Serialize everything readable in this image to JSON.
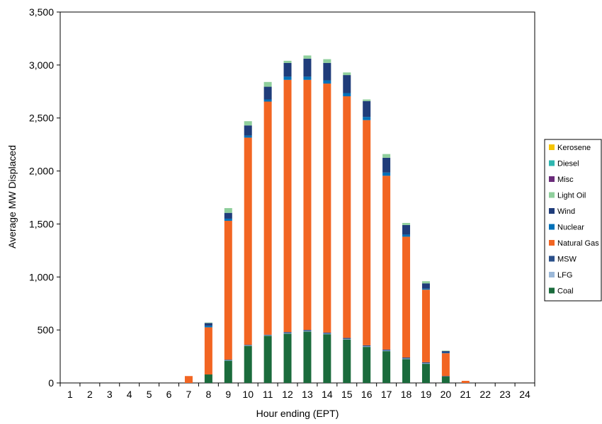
{
  "chart_data": {
    "type": "bar",
    "stacked": true,
    "title": "",
    "xlabel": "Hour ending (EPT)",
    "ylabel": "Average MW Displaced",
    "ylim": [
      0,
      3500
    ],
    "yticks": [
      "0",
      "500",
      "1,000",
      "1,500",
      "2,000",
      "2,500",
      "3,000",
      "3,500"
    ],
    "ytick_values": [
      0,
      500,
      1000,
      1500,
      2000,
      2500,
      3000,
      3500
    ],
    "grid": false,
    "legend_position": "right",
    "categories": [
      "1",
      "2",
      "3",
      "4",
      "5",
      "6",
      "7",
      "8",
      "9",
      "10",
      "11",
      "12",
      "13",
      "14",
      "15",
      "16",
      "17",
      "18",
      "19",
      "20",
      "21",
      "22",
      "23",
      "24"
    ],
    "series": [
      {
        "name": "Coal",
        "color": "#1a6b3c",
        "values": [
          0,
          0,
          0,
          0,
          0,
          0,
          0,
          80,
          210,
          350,
          445,
          465,
          485,
          460,
          410,
          340,
          300,
          225,
          180,
          60,
          0,
          0,
          0,
          0
        ]
      },
      {
        "name": "LFG",
        "color": "#9bb8d8",
        "values": [
          0,
          0,
          0,
          0,
          0,
          0,
          0,
          0,
          5,
          5,
          5,
          5,
          5,
          5,
          5,
          5,
          5,
          5,
          5,
          0,
          0,
          0,
          0,
          0
        ]
      },
      {
        "name": "MSW",
        "color": "#2a4f8a",
        "values": [
          0,
          0,
          0,
          0,
          0,
          0,
          0,
          0,
          5,
          5,
          5,
          10,
          10,
          10,
          10,
          10,
          10,
          10,
          10,
          5,
          0,
          0,
          0,
          0
        ]
      },
      {
        "name": "Natural Gas",
        "color": "#f26522",
        "values": [
          0,
          0,
          0,
          0,
          0,
          0,
          65,
          445,
          1310,
          1955,
          2200,
          2380,
          2360,
          2350,
          2280,
          2125,
          1640,
          1140,
          685,
          215,
          20,
          0,
          0,
          0
        ]
      },
      {
        "name": "Nuclear",
        "color": "#0070b8",
        "values": [
          0,
          0,
          0,
          0,
          0,
          0,
          0,
          15,
          20,
          20,
          20,
          30,
          30,
          30,
          30,
          30,
          30,
          20,
          10,
          5,
          0,
          0,
          0,
          0
        ]
      },
      {
        "name": "Wind",
        "color": "#1f3c7a",
        "values": [
          0,
          0,
          0,
          0,
          0,
          0,
          0,
          25,
          55,
          95,
          120,
          130,
          170,
          165,
          170,
          150,
          140,
          90,
          50,
          15,
          0,
          0,
          0,
          0
        ]
      },
      {
        "name": "Light Oil",
        "color": "#8fcf9c",
        "values": [
          0,
          0,
          0,
          0,
          0,
          0,
          0,
          5,
          45,
          40,
          45,
          20,
          30,
          35,
          25,
          15,
          35,
          20,
          20,
          5,
          0,
          0,
          0,
          0
        ]
      },
      {
        "name": "Misc",
        "color": "#6a2b7a",
        "values": [
          0,
          0,
          0,
          0,
          0,
          0,
          0,
          0,
          0,
          0,
          0,
          0,
          0,
          0,
          0,
          0,
          0,
          0,
          0,
          0,
          0,
          0,
          0,
          0
        ]
      },
      {
        "name": "Diesel",
        "color": "#2fb7b0",
        "values": [
          0,
          0,
          0,
          0,
          0,
          0,
          0,
          0,
          0,
          0,
          0,
          0,
          0,
          0,
          0,
          0,
          0,
          0,
          0,
          0,
          0,
          0,
          0,
          0
        ]
      },
      {
        "name": "Kerosene",
        "color": "#f5c400",
        "values": [
          0,
          0,
          0,
          0,
          0,
          0,
          0,
          0,
          0,
          0,
          0,
          0,
          0,
          0,
          0,
          0,
          0,
          0,
          0,
          0,
          0,
          0,
          0,
          0
        ]
      }
    ],
    "legend_order": [
      "Kerosene",
      "Diesel",
      "Misc",
      "Light Oil",
      "Wind",
      "Nuclear",
      "Natural Gas",
      "MSW",
      "LFG",
      "Coal"
    ]
  }
}
